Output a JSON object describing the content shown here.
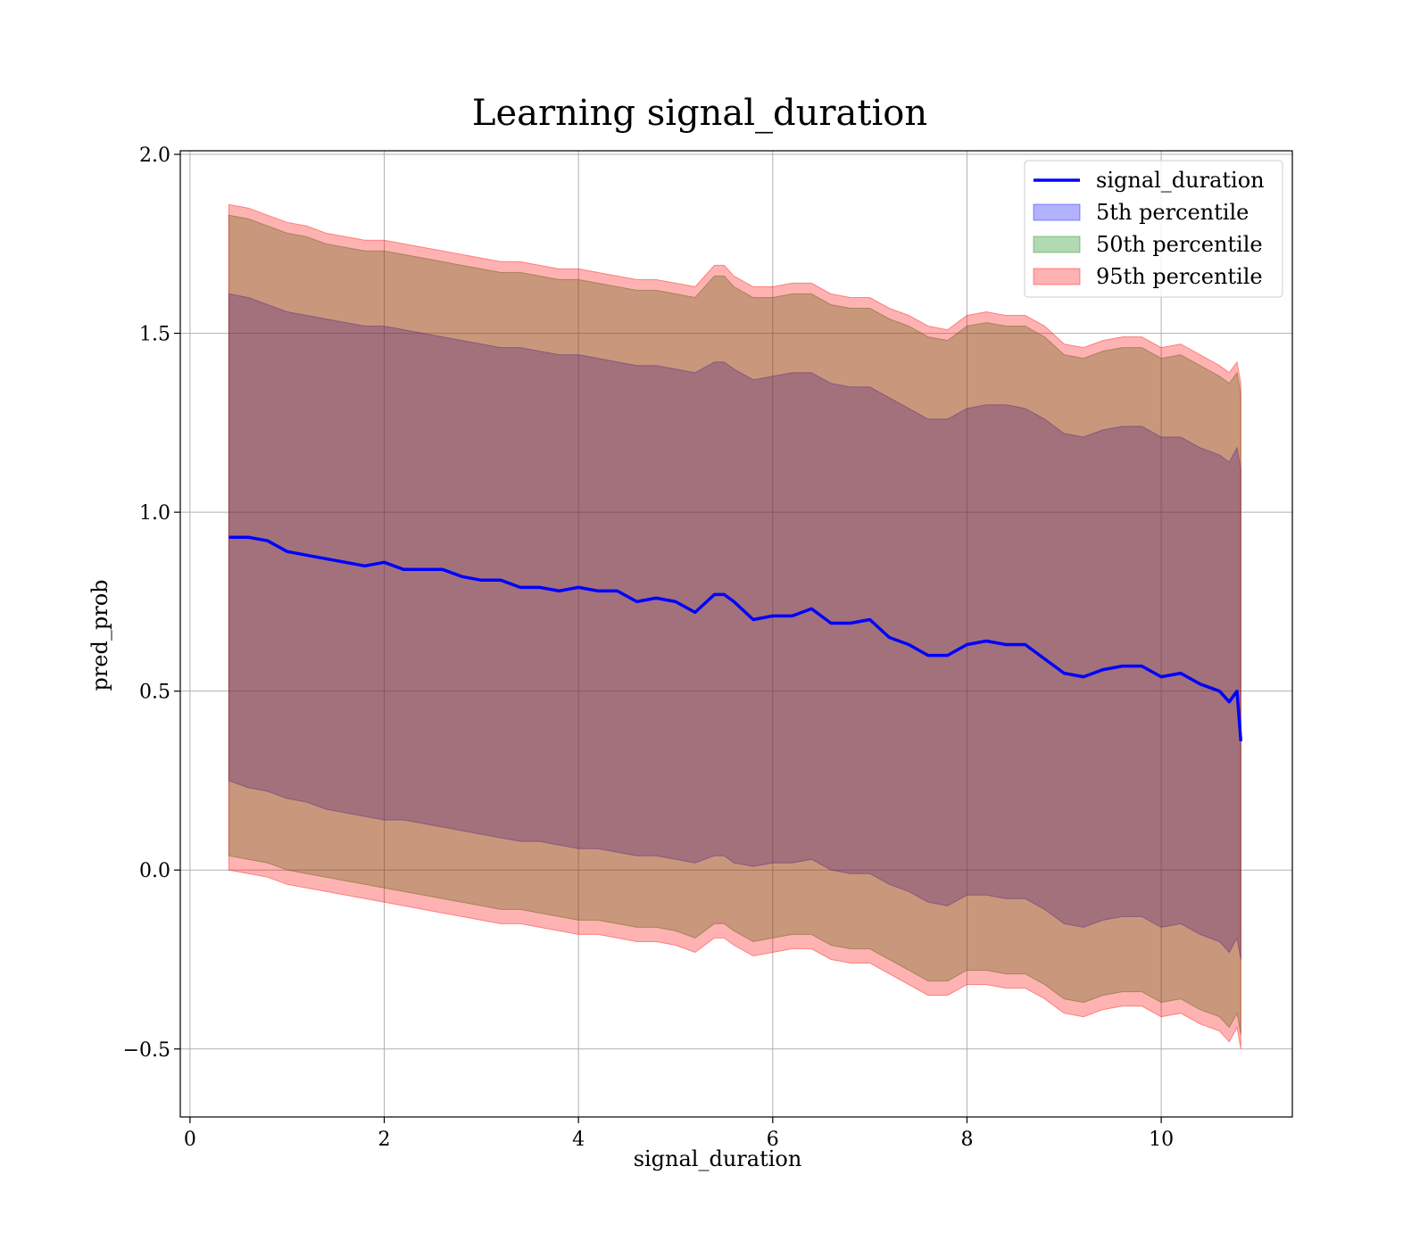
{
  "chart_data": {
    "type": "area",
    "title": "Learning signal_duration",
    "xlabel": "signal_duration",
    "ylabel": "pred_prob",
    "xlim": [
      -0.1,
      11.35
    ],
    "ylim": [
      -0.69,
      2.01
    ],
    "xticks": [
      0,
      2,
      4,
      6,
      8,
      10
    ],
    "xtick_labels": [
      "0",
      "2",
      "4",
      "6",
      "8",
      "10"
    ],
    "yticks": [
      -0.5,
      0.0,
      0.5,
      1.0,
      1.5,
      2.0
    ],
    "ytick_labels": [
      "−0.5",
      "0.0",
      "0.5",
      "1.0",
      "1.5",
      "2.0"
    ],
    "grid": true,
    "legend_position": "top-right",
    "legend": [
      {
        "label": "signal_duration",
        "kind": "line",
        "color": "#0000ff"
      },
      {
        "label": "5th percentile",
        "kind": "patch",
        "color": "#0000ff"
      },
      {
        "label": "50th percentile",
        "kind": "patch",
        "color": "#008000"
      },
      {
        "label": "95th percentile",
        "kind": "patch",
        "color": "#ff0000"
      }
    ],
    "x": [
      0.4,
      0.6,
      0.8,
      1.0,
      1.2,
      1.4,
      1.6,
      1.8,
      2.0,
      2.2,
      2.4,
      2.6,
      2.8,
      3.0,
      3.2,
      3.4,
      3.6,
      3.8,
      4.0,
      4.2,
      4.4,
      4.6,
      4.8,
      5.0,
      5.2,
      5.4,
      5.5,
      5.6,
      5.8,
      6.0,
      6.2,
      6.4,
      6.6,
      6.8,
      7.0,
      7.2,
      7.4,
      7.6,
      7.8,
      8.0,
      8.2,
      8.4,
      8.6,
      8.8,
      9.0,
      9.2,
      9.4,
      9.6,
      9.8,
      10.0,
      10.2,
      10.4,
      10.6,
      10.7,
      10.78,
      10.82
    ],
    "series": [
      {
        "name": "signal_duration",
        "type": "line",
        "color": "#0000ff",
        "values": [
          0.93,
          0.93,
          0.92,
          0.89,
          0.88,
          0.87,
          0.86,
          0.85,
          0.86,
          0.84,
          0.84,
          0.84,
          0.82,
          0.81,
          0.81,
          0.79,
          0.79,
          0.78,
          0.79,
          0.78,
          0.78,
          0.75,
          0.76,
          0.75,
          0.72,
          0.77,
          0.77,
          0.75,
          0.7,
          0.71,
          0.71,
          0.73,
          0.69,
          0.69,
          0.7,
          0.65,
          0.63,
          0.6,
          0.6,
          0.63,
          0.64,
          0.63,
          0.63,
          0.59,
          0.55,
          0.54,
          0.56,
          0.57,
          0.57,
          0.54,
          0.55,
          0.52,
          0.5,
          0.47,
          0.5,
          0.36
        ]
      },
      {
        "name": "5th percentile",
        "type": "band",
        "color": "#0000ff",
        "alpha": 0.3,
        "lower": [
          0.25,
          0.23,
          0.22,
          0.2,
          0.19,
          0.17,
          0.16,
          0.15,
          0.14,
          0.14,
          0.13,
          0.12,
          0.11,
          0.1,
          0.09,
          0.08,
          0.08,
          0.07,
          0.06,
          0.06,
          0.05,
          0.04,
          0.04,
          0.03,
          0.02,
          0.04,
          0.04,
          0.02,
          0.01,
          0.02,
          0.02,
          0.03,
          0.0,
          -0.01,
          -0.01,
          -0.04,
          -0.06,
          -0.09,
          -0.1,
          -0.07,
          -0.07,
          -0.08,
          -0.08,
          -0.11,
          -0.15,
          -0.16,
          -0.14,
          -0.13,
          -0.13,
          -0.16,
          -0.15,
          -0.18,
          -0.2,
          -0.23,
          -0.19,
          -0.25
        ],
        "upper": [
          1.61,
          1.6,
          1.58,
          1.56,
          1.55,
          1.54,
          1.53,
          1.52,
          1.52,
          1.51,
          1.5,
          1.49,
          1.48,
          1.47,
          1.46,
          1.46,
          1.45,
          1.44,
          1.44,
          1.43,
          1.42,
          1.41,
          1.41,
          1.4,
          1.39,
          1.42,
          1.42,
          1.4,
          1.37,
          1.38,
          1.39,
          1.39,
          1.36,
          1.35,
          1.35,
          1.32,
          1.29,
          1.26,
          1.26,
          1.29,
          1.3,
          1.3,
          1.29,
          1.26,
          1.22,
          1.21,
          1.23,
          1.24,
          1.24,
          1.21,
          1.21,
          1.18,
          1.16,
          1.14,
          1.18,
          1.12
        ]
      },
      {
        "name": "50th percentile",
        "type": "band",
        "color": "#008000",
        "alpha": 0.3,
        "lower": [
          0.04,
          0.03,
          0.02,
          0.0,
          -0.01,
          -0.02,
          -0.03,
          -0.04,
          -0.05,
          -0.06,
          -0.07,
          -0.08,
          -0.09,
          -0.1,
          -0.11,
          -0.11,
          -0.12,
          -0.13,
          -0.14,
          -0.14,
          -0.15,
          -0.16,
          -0.16,
          -0.17,
          -0.19,
          -0.15,
          -0.15,
          -0.17,
          -0.2,
          -0.19,
          -0.18,
          -0.18,
          -0.21,
          -0.22,
          -0.22,
          -0.25,
          -0.28,
          -0.31,
          -0.31,
          -0.28,
          -0.28,
          -0.29,
          -0.29,
          -0.32,
          -0.36,
          -0.37,
          -0.35,
          -0.34,
          -0.34,
          -0.37,
          -0.36,
          -0.39,
          -0.41,
          -0.44,
          -0.4,
          -0.46
        ]
      },
      {
        "name": "95th percentile",
        "type": "band",
        "color": "#ff0000",
        "alpha": 0.3,
        "lower": [
          0.0,
          -0.01,
          -0.02,
          -0.04,
          -0.05,
          -0.06,
          -0.07,
          -0.08,
          -0.09,
          -0.1,
          -0.11,
          -0.12,
          -0.13,
          -0.14,
          -0.15,
          -0.15,
          -0.16,
          -0.17,
          -0.18,
          -0.18,
          -0.19,
          -0.2,
          -0.2,
          -0.21,
          -0.23,
          -0.19,
          -0.19,
          -0.21,
          -0.24,
          -0.23,
          -0.22,
          -0.22,
          -0.25,
          -0.26,
          -0.26,
          -0.29,
          -0.32,
          -0.35,
          -0.35,
          -0.32,
          -0.32,
          -0.33,
          -0.33,
          -0.36,
          -0.4,
          -0.41,
          -0.39,
          -0.38,
          -0.38,
          -0.41,
          -0.4,
          -0.43,
          -0.45,
          -0.48,
          -0.44,
          -0.5
        ],
        "upper": [
          1.86,
          1.85,
          1.83,
          1.81,
          1.8,
          1.78,
          1.77,
          1.76,
          1.76,
          1.75,
          1.74,
          1.73,
          1.72,
          1.71,
          1.7,
          1.7,
          1.69,
          1.68,
          1.68,
          1.67,
          1.66,
          1.65,
          1.65,
          1.64,
          1.63,
          1.69,
          1.69,
          1.66,
          1.63,
          1.63,
          1.64,
          1.64,
          1.61,
          1.6,
          1.6,
          1.57,
          1.55,
          1.52,
          1.51,
          1.55,
          1.56,
          1.55,
          1.55,
          1.52,
          1.47,
          1.46,
          1.48,
          1.49,
          1.49,
          1.46,
          1.47,
          1.44,
          1.41,
          1.39,
          1.42,
          1.36
        ]
      }
    ]
  }
}
